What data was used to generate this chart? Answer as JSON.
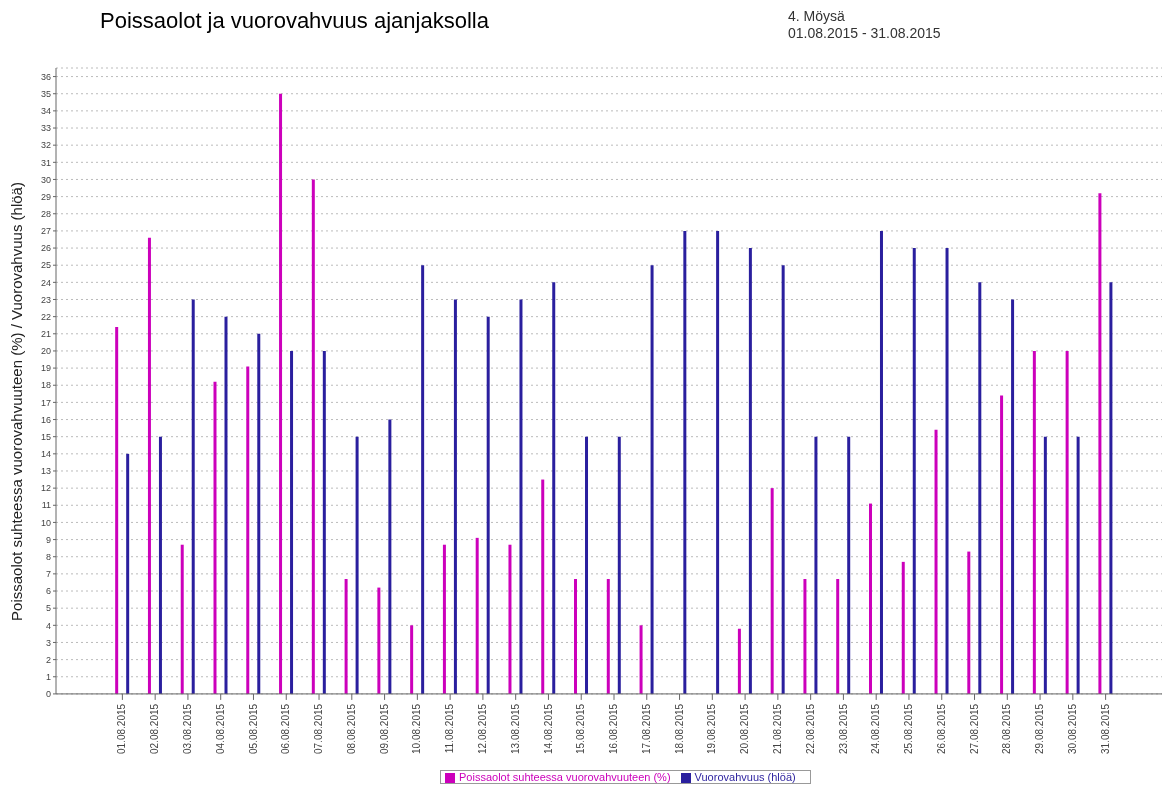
{
  "chart_data": {
    "type": "bar",
    "title": "Poissaolot ja vuorovahvuus ajanjaksolla",
    "subtitle": "4. Möysä\n01.08.2015 - 31.08.2015",
    "ylabel": "Poissaolot suhteessa vuorovahvuuteen (%) / Vuorovahvuus (hlöä)",
    "categories": [
      "01.08.2015",
      "02.08.2015",
      "03.08.2015",
      "04.08.2015",
      "05.08.2015",
      "06.08.2015",
      "07.08.2015",
      "08.08.2015",
      "09.08.2015",
      "10.08.2015",
      "11.08.2015",
      "12.08.2015",
      "13.08.2015",
      "14.08.2015",
      "15.08.2015",
      "16.08.2015",
      "17.08.2015",
      "18.08.2015",
      "19.08.2015",
      "20.08.2015",
      "21.08.2015",
      "22.08.2015",
      "23.08.2015",
      "24.08.2015",
      "25.08.2015",
      "26.08.2015",
      "27.08.2015",
      "28.08.2015",
      "29.08.2015",
      "30.08.2015",
      "31.08.2015"
    ],
    "series": [
      {
        "name": "Poissaolot suhteessa vuorovahvuuteen (%)",
        "color": "#cc00bb",
        "values": [
          21.4,
          26.6,
          8.7,
          18.2,
          19.1,
          35,
          30,
          6.7,
          6.2,
          4,
          8.7,
          9.1,
          8.7,
          12.5,
          6.7,
          6.7,
          4,
          null,
          null,
          3.8,
          12,
          6.7,
          6.7,
          11.1,
          7.7,
          15.4,
          8.3,
          17.4,
          20,
          20,
          29.2
        ]
      },
      {
        "name": "Vuorovahvuus (hlöä)",
        "color": "#2a1f9e",
        "values": [
          14,
          15,
          23,
          22,
          21,
          20,
          20,
          15,
          16,
          25,
          23,
          22,
          23,
          24,
          15,
          15,
          25,
          27,
          27,
          26,
          25,
          15,
          15,
          27,
          26,
          26,
          24,
          23,
          15,
          15,
          24
        ]
      }
    ],
    "ylim": [
      0,
      36.5
    ],
    "yticks": [
      0,
      1,
      2,
      3,
      4,
      5,
      6,
      7,
      8,
      9,
      10,
      11,
      12,
      13,
      14,
      15,
      16,
      17,
      18,
      19,
      20,
      21,
      22,
      23,
      24,
      25,
      26,
      27,
      28,
      29,
      30,
      31,
      32,
      33,
      34,
      35,
      36
    ],
    "grid": "y",
    "legend": "bottom"
  }
}
